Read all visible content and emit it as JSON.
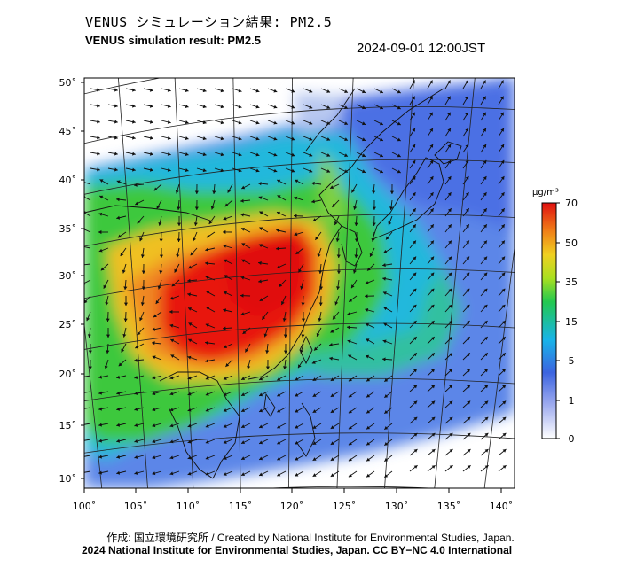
{
  "header": {
    "title_jp": "VENUS シミュレーション結果: PM2.5",
    "title_en": "VENUS simulation result: PM2.5",
    "timestamp": "2024-09-01 12:00JST"
  },
  "map": {
    "lat_ticks": [
      "50˚",
      "45˚",
      "40˚",
      "35˚",
      "30˚",
      "25˚",
      "20˚",
      "15˚",
      "10˚"
    ],
    "lon_ticks": [
      "100˚",
      "105˚",
      "110˚",
      "115˚",
      "120˚",
      "125˚",
      "130˚",
      "135˚",
      "140˚"
    ]
  },
  "colorbar": {
    "unit": "μg/m³",
    "labels": [
      "70",
      "50",
      "35",
      "15",
      "5",
      "1",
      "0"
    ]
  },
  "footer": {
    "credit": "作成: 国立環境研究所 / Created by National Institute for Environmental Studies, Japan.",
    "copyright": "2024 National Institute for Environmental Studies, Japan. CC BY−NC 4.0 International"
  },
  "colors": {
    "very_high": "#e8140c",
    "high": "#f0a020",
    "medium": "#3cc83c",
    "low": "#20b4d8",
    "very_low": "#4a78e8",
    "background_low": "#c8d4f4"
  }
}
